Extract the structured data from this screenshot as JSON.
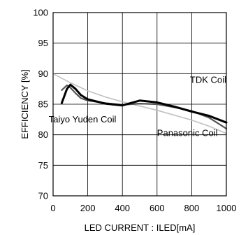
{
  "chart_data": {
    "type": "line",
    "xlabel": "LED CURRENT : ILED[mA]",
    "ylabel": "EFFICIENCY [%]",
    "xlim": [
      0,
      1000
    ],
    "ylim": [
      70,
      100
    ],
    "xticks": [
      "0",
      "200",
      "400",
      "600",
      "800",
      "1000"
    ],
    "yticks": [
      "70",
      "75",
      "80",
      "85",
      "90",
      "95",
      "100"
    ],
    "grid": true,
    "series": [
      {
        "name": "TDK Coil",
        "color": "#000000",
        "x": [
          50,
          80,
          100,
          130,
          160,
          200,
          300,
          400,
          500,
          600,
          700,
          800,
          900,
          1000
        ],
        "y": [
          85.2,
          87.5,
          88.2,
          87.5,
          86.5,
          85.8,
          85.1,
          84.8,
          85.6,
          85.3,
          84.6,
          83.8,
          83.1,
          82.0
        ]
      },
      {
        "name": "Taiyo Yuden Coil",
        "color": "#555555",
        "x": [
          50,
          80,
          100,
          130,
          160,
          200,
          300,
          400,
          500,
          600,
          700,
          800,
          900,
          1000
        ],
        "y": [
          87.3,
          88.1,
          87.7,
          86.8,
          86.0,
          85.6,
          85.2,
          84.9,
          85.1,
          85.0,
          84.5,
          83.9,
          82.8,
          81.0
        ]
      },
      {
        "name": "Panasonic Coil",
        "color": "#c0c0c0",
        "x": [
          0,
          100,
          200,
          300,
          400,
          500,
          600,
          700,
          800,
          900,
          1000
        ],
        "y": [
          90.0,
          88.5,
          87.2,
          86.2,
          85.4,
          84.7,
          84.0,
          83.2,
          82.4,
          81.4,
          80.2
        ]
      }
    ],
    "annotations": [
      {
        "text": "TDK Coil",
        "x": 790,
        "y": 88.5,
        "anchor": "start"
      },
      {
        "text": "Taiyo Yuden Coil",
        "x": -25,
        "y": 82.0,
        "anchor": "start"
      },
      {
        "text": "Panasonic Coil",
        "x": 600,
        "y": 79.8,
        "anchor": "start"
      }
    ]
  }
}
